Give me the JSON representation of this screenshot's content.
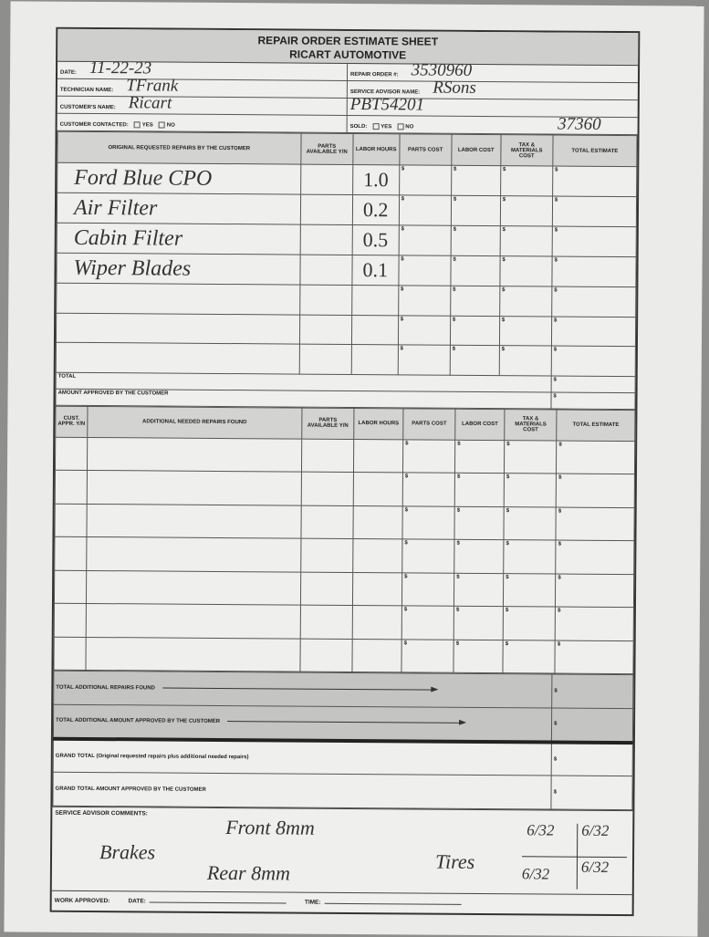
{
  "title": {
    "line1": "REPAIR ORDER ESTIMATE SHEET",
    "line2": "RICART AUTOMOTIVE"
  },
  "header": {
    "date_label": "DATE:",
    "date": "11-22-23",
    "technician_label": "TECHNICIAN NAME:",
    "technician": "TFrank",
    "customer_label": "CUSTOMER'S NAME:",
    "customer": "Ricart",
    "contacted_label": "CUSTOMER CONTACTED:",
    "yes": "YES",
    "no": "NO",
    "repair_order_label": "REPAIR ORDER #:",
    "repair_order": "3530960",
    "advisor_label": "SERVICE ADVISOR NAME:",
    "advisor": "RSons",
    "extra_code": "PBT54201",
    "sold_label": "SOLD:",
    "mileage": "37360"
  },
  "original": {
    "headers": [
      "ORIGINAL REQUESTED REPAIRS BY THE CUSTOMER",
      "PARTS AVAILABLE Y/N",
      "LABOR HOURS",
      "PARTS COST",
      "LABOR COST",
      "TAX & MATERIALS COST",
      "TOTAL ESTIMATE"
    ],
    "rows": [
      {
        "desc": "Ford Blue CPO",
        "hours": "1.0"
      },
      {
        "desc": "Air Filter",
        "hours": "0.2"
      },
      {
        "desc": "Cabin Filter",
        "hours": "0.5"
      },
      {
        "desc": "Wiper Blades",
        "hours": "0.1"
      },
      {
        "desc": "",
        "hours": ""
      },
      {
        "desc": "",
        "hours": ""
      },
      {
        "desc": "",
        "hours": ""
      }
    ],
    "currency": "$",
    "total_label": "TOTAL",
    "approved_label": "AMOUNT APPROVED BY THE CUSTOMER"
  },
  "additional": {
    "headers": [
      "CUST. APPR. Y/N",
      "ADDITIONAL NEEDED REPAIRS FOUND",
      "PARTS AVAILABLE Y/N",
      "LABOR HOURS",
      "PARTS COST",
      "LABOR COST",
      "TAX & MATERIALS COST",
      "TOTAL ESTIMATE"
    ],
    "row_count": 7,
    "total_found_label": "TOTAL ADDITIONAL REPAIRS FOUND",
    "total_approved_label": "TOTAL ADDITIONAL AMOUNT APPROVED BY THE CUSTOMER"
  },
  "grand": {
    "total_label": "GRAND TOTAL (Original requested repairs plus additional needed repairs)",
    "approved_label": "GRAND TOTAL AMOUNT APPROVED BY THE CUSTOMER"
  },
  "comments": {
    "label": "SERVICE ADVISOR COMMENTS:",
    "brakes": "Brakes",
    "front": "Front 8mm",
    "rear": "Rear 8mm",
    "tires": "Tires",
    "t1": "6/32",
    "t2": "6/32",
    "t3": "6/32",
    "t4": "6/32"
  },
  "footer": {
    "work_approved": "WORK APPROVED:",
    "date": "DATE:",
    "time": "TIME:"
  }
}
